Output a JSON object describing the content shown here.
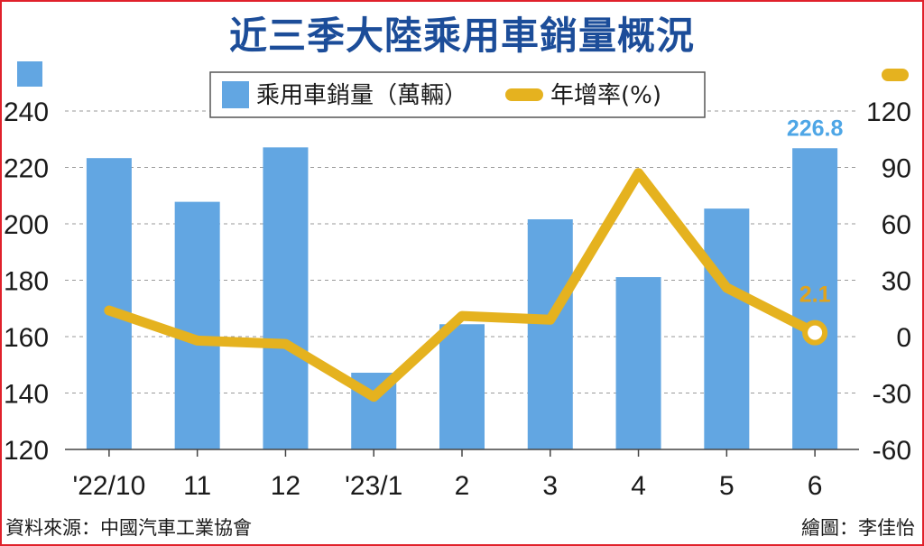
{
  "title": "近三季大陸乘用車銷量概況",
  "legend": {
    "bar_label": "乘用車銷量（萬輛）",
    "line_label": "年增率(%)"
  },
  "footer": {
    "source": "資料來源：中國汽車工業協會",
    "credit": "繪圖：李佳怡"
  },
  "colors": {
    "bar": "#62a6e2",
    "line": "#e5b21f",
    "title": "#1c4d99",
    "border": "#e0212b"
  },
  "chart_data": {
    "type": "bar",
    "categories": [
      "'22/10",
      "11",
      "12",
      "'23/1",
      "2",
      "3",
      "4",
      "5",
      "6"
    ],
    "series": [
      {
        "name": "乘用車銷量（萬輛）",
        "type": "bar",
        "axis": "left",
        "values": [
          223.3,
          207.8,
          227.1,
          147.2,
          164.4,
          201.6,
          181.1,
          205.4,
          226.8
        ]
      },
      {
        "name": "年增率(%)",
        "type": "line",
        "axis": "right",
        "values": [
          13.9,
          -2.1,
          -3.9,
          -32.0,
          11.0,
          9.0,
          87.0,
          26.0,
          2.1
        ]
      }
    ],
    "left_axis": {
      "ylim": [
        120,
        240
      ],
      "ticks": [
        "120",
        "140",
        "160",
        "180",
        "200",
        "220",
        "240"
      ]
    },
    "right_axis": {
      "ylim": [
        -60,
        120
      ],
      "ticks": [
        "-60",
        "-30",
        "0",
        "30",
        "60",
        "90",
        "120"
      ]
    },
    "data_labels": {
      "bar_last": "226.8",
      "line_last": "2.1"
    },
    "grid": true
  }
}
